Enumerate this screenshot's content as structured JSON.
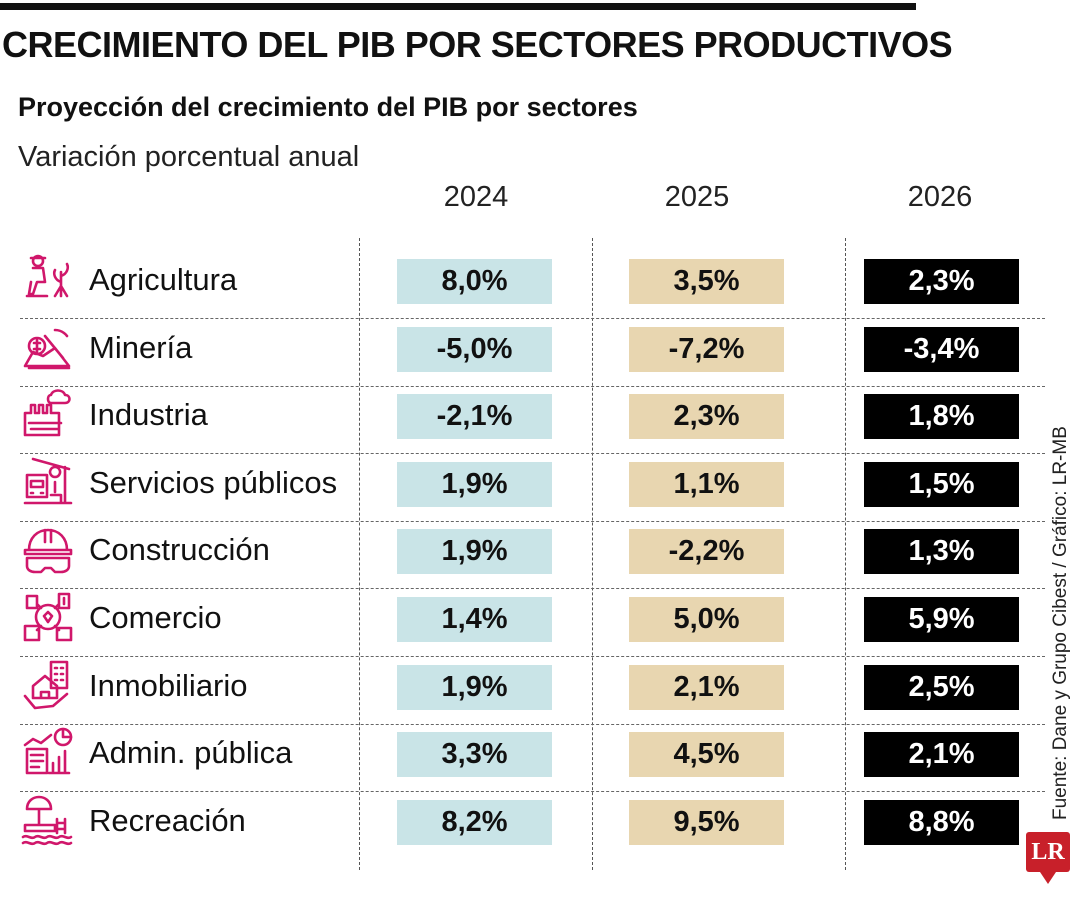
{
  "header": {
    "title": "CRECIMIENTO DEL PIB POR SECTORES PRODUCTIVOS",
    "subtitle": "Proyección del crecimiento del PIB por sectores",
    "unit": "Variación porcentual anual"
  },
  "colors": {
    "col_2024": "#c9e4e7",
    "col_2025": "#e8d6b0",
    "col_2026": "#000000",
    "icon": "#d0176b",
    "logo": "#c8202a"
  },
  "source": "Fuente: Dane y Grupo Cibest / Gráfico: LR-MB",
  "logo_text": "LR",
  "chart_data": {
    "type": "table",
    "title": "Proyección del crecimiento del PIB por sectores",
    "subtitle": "Variación porcentual anual",
    "columns": [
      "2024",
      "2025",
      "2026"
    ],
    "rows": [
      {
        "sector": "Agricultura",
        "icon": "farmer-plant-icon",
        "values": [
          "8,0%",
          "3,5%",
          "2,3%"
        ],
        "numeric": [
          8.0,
          3.5,
          2.3
        ]
      },
      {
        "sector": "Minería",
        "icon": "mining-pickaxe-icon",
        "values": [
          "-5,0%",
          "-7,2%",
          "-3,4%"
        ],
        "numeric": [
          -5.0,
          -7.2,
          -3.4
        ]
      },
      {
        "sector": "Industria",
        "icon": "factory-icon",
        "values": [
          "-2,1%",
          "2,3%",
          "1,8%"
        ],
        "numeric": [
          -2.1,
          2.3,
          1.8
        ]
      },
      {
        "sector": "Servicios públicos",
        "icon": "public-services-station-icon",
        "values": [
          "1,9%",
          "1,1%",
          "1,5%"
        ],
        "numeric": [
          1.9,
          1.1,
          1.5
        ]
      },
      {
        "sector": "Construcción",
        "icon": "hard-hat-goggles-icon",
        "values": [
          "1,9%",
          "-2,2%",
          "1,3%"
        ],
        "numeric": [
          1.9,
          -2.2,
          1.3
        ]
      },
      {
        "sector": "Comercio",
        "icon": "commerce-network-icon",
        "values": [
          "1,4%",
          "5,0%",
          "5,9%"
        ],
        "numeric": [
          1.4,
          5.0,
          5.9
        ]
      },
      {
        "sector": "Inmobiliario",
        "icon": "house-in-hand-icon",
        "values": [
          "1,9%",
          "2,1%",
          "2,5%"
        ],
        "numeric": [
          1.9,
          2.1,
          2.5
        ]
      },
      {
        "sector": "Admin. pública",
        "icon": "admin-report-chart-icon",
        "values": [
          "3,3%",
          "4,5%",
          "2,1%"
        ],
        "numeric": [
          3.3,
          4.5,
          2.1
        ]
      },
      {
        "sector": "Recreación",
        "icon": "beach-umbrella-pool-icon",
        "values": [
          "8,2%",
          "9,5%",
          "8,8%"
        ],
        "numeric": [
          8.2,
          9.5,
          8.8
        ]
      }
    ]
  }
}
